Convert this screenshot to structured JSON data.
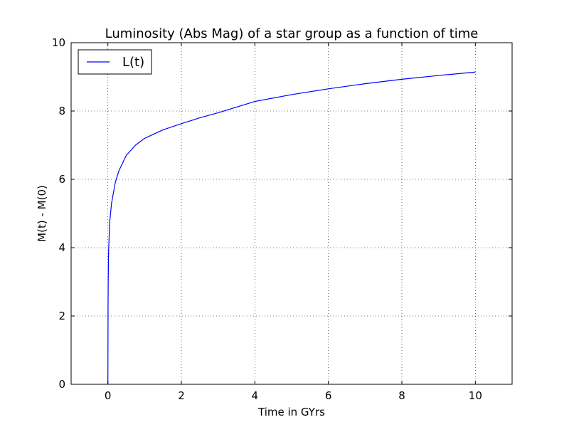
{
  "chart_data": {
    "type": "line",
    "title": "Luminosity (Abs Mag) of a star group as a function of time",
    "xlabel": "Time in GYrs",
    "ylabel": "M(t) - M(0)",
    "xlim": [
      -1,
      11
    ],
    "ylim": [
      0,
      10
    ],
    "xticks": [
      0,
      2,
      4,
      6,
      8,
      10
    ],
    "yticks": [
      0,
      2,
      4,
      6,
      8,
      10
    ],
    "grid": true,
    "legend_position": "upper-left",
    "series": [
      {
        "name": "L(t)",
        "color": "#0000ff",
        "x": [
          0.001,
          0.005,
          0.01,
          0.02,
          0.05,
          0.1,
          0.2,
          0.3,
          0.5,
          0.75,
          1,
          1.5,
          2,
          2.5,
          3,
          4,
          5,
          6,
          7,
          8,
          9,
          10
        ],
        "y": [
          0.2,
          2.2,
          3.1,
          3.9,
          4.75,
          5.3,
          5.9,
          6.25,
          6.7,
          7.0,
          7.2,
          7.45,
          7.63,
          7.8,
          7.95,
          8.28,
          8.48,
          8.65,
          8.8,
          8.93,
          9.04,
          9.14
        ]
      }
    ]
  }
}
